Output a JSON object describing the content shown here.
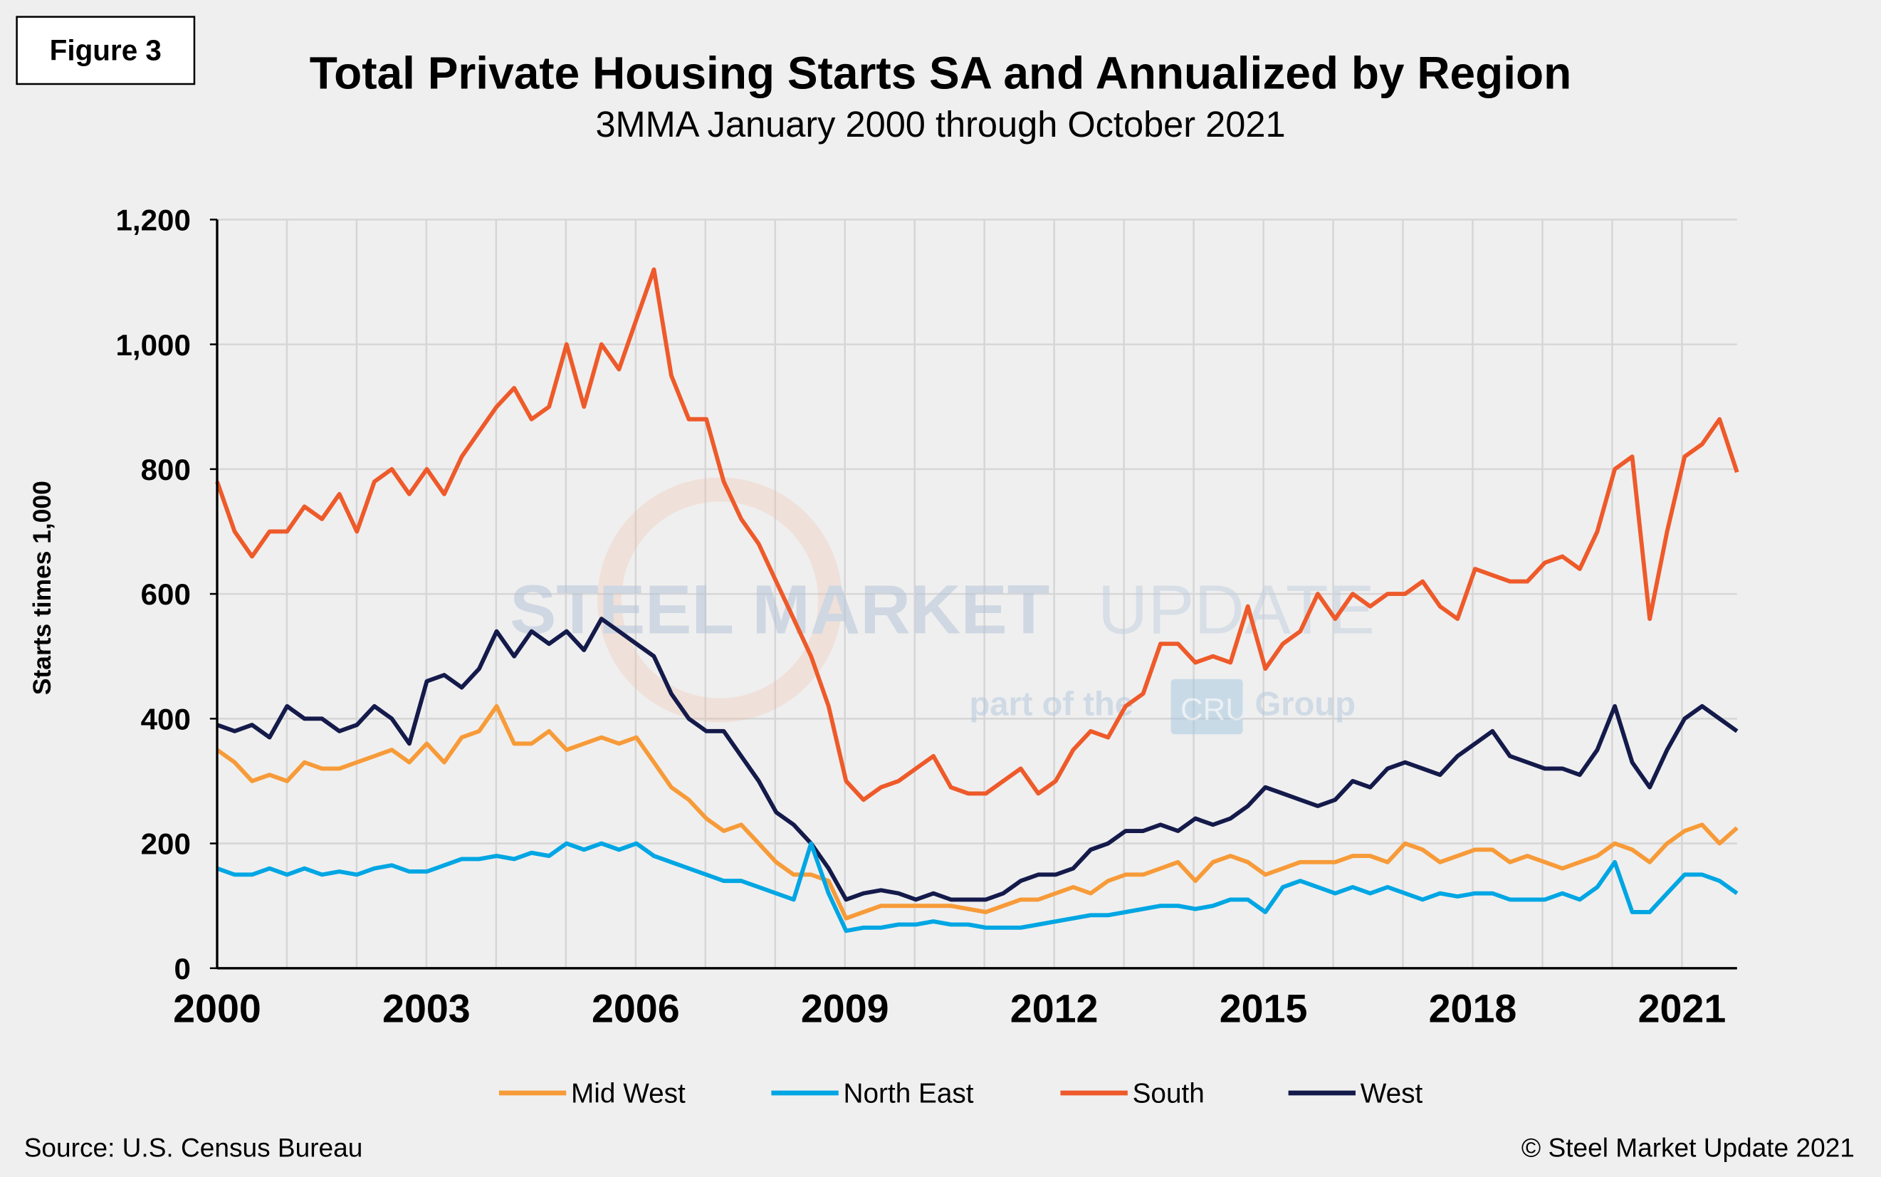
{
  "figure_label": "Figure 3",
  "source": "Source: U.S. Census Bureau",
  "copyright": "© Steel Market Update 2021",
  "watermark": {
    "line1a": "STEEL MARKET",
    "line1b": "UPDATE",
    "line2a": "part of the",
    "line2b": "CRU",
    "line2c": "Group"
  },
  "chart_data": {
    "type": "line",
    "title": "Total Private Housing Starts SA and Annualized by Region",
    "subtitle": "3MMA January 2000 through October 2021",
    "xlabel": "",
    "ylabel": "Starts times 1,000",
    "xlim": [
      2000,
      2021.79
    ],
    "ylim": [
      0,
      1200
    ],
    "grid": true,
    "legend_position": "bottom",
    "x_ticks": [
      "2000",
      "2003",
      "2006",
      "2009",
      "2012",
      "2015",
      "2018",
      "2021"
    ],
    "y_ticks": [
      "0",
      "200",
      "400",
      "600",
      "800",
      "1,000",
      "1,200"
    ],
    "x_frequency": "quarterly (approx.), Jan 2000 – Oct 2021",
    "series": [
      {
        "name": "Mid West",
        "color": "#f79b39",
        "values": [
          350,
          330,
          300,
          310,
          300,
          330,
          320,
          320,
          330,
          340,
          350,
          330,
          360,
          330,
          370,
          380,
          420,
          360,
          360,
          380,
          350,
          360,
          370,
          360,
          370,
          330,
          290,
          270,
          240,
          220,
          230,
          200,
          170,
          150,
          150,
          140,
          80,
          90,
          100,
          100,
          100,
          100,
          100,
          95,
          90,
          100,
          110,
          110,
          120,
          130,
          120,
          140,
          150,
          150,
          160,
          170,
          140,
          170,
          180,
          170,
          150,
          160,
          170,
          170,
          170,
          180,
          180,
          170,
          200,
          190,
          170,
          180,
          190,
          190,
          170,
          180,
          170,
          160,
          170,
          180,
          200,
          190,
          170,
          200,
          220,
          230,
          200,
          225
        ]
      },
      {
        "name": "North East",
        "color": "#00a6e3",
        "values": [
          160,
          150,
          150,
          160,
          150,
          160,
          150,
          155,
          150,
          160,
          165,
          155,
          155,
          165,
          175,
          175,
          180,
          175,
          185,
          180,
          200,
          190,
          200,
          190,
          200,
          180,
          170,
          160,
          150,
          140,
          140,
          130,
          120,
          110,
          200,
          120,
          60,
          65,
          65,
          70,
          70,
          75,
          70,
          70,
          65,
          65,
          65,
          70,
          75,
          80,
          85,
          85,
          90,
          95,
          100,
          100,
          95,
          100,
          110,
          110,
          90,
          130,
          140,
          130,
          120,
          130,
          120,
          130,
          120,
          110,
          120,
          115,
          120,
          120,
          110,
          110,
          110,
          120,
          110,
          130,
          170,
          90,
          90,
          120,
          150,
          150,
          140,
          120
        ]
      },
      {
        "name": "South",
        "color": "#ee5a2a",
        "values": [
          780,
          700,
          660,
          700,
          700,
          740,
          720,
          760,
          700,
          780,
          800,
          760,
          800,
          760,
          820,
          860,
          900,
          930,
          880,
          900,
          1000,
          900,
          1000,
          960,
          1040,
          1120,
          950,
          880,
          880,
          780,
          720,
          680,
          620,
          560,
          500,
          420,
          300,
          270,
          290,
          300,
          320,
          340,
          290,
          280,
          280,
          300,
          320,
          280,
          300,
          350,
          380,
          370,
          420,
          440,
          520,
          520,
          490,
          500,
          490,
          580,
          480,
          520,
          540,
          600,
          560,
          600,
          580,
          600,
          600,
          620,
          580,
          560,
          640,
          630,
          620,
          620,
          650,
          660,
          640,
          700,
          800,
          820,
          560,
          700,
          820,
          840,
          880,
          795
        ]
      },
      {
        "name": "West",
        "color": "#141a4a",
        "values": [
          390,
          380,
          390,
          370,
          420,
          400,
          400,
          380,
          390,
          420,
          400,
          360,
          460,
          470,
          450,
          480,
          540,
          500,
          540,
          520,
          540,
          510,
          560,
          540,
          520,
          500,
          440,
          400,
          380,
          380,
          340,
          300,
          250,
          230,
          200,
          160,
          110,
          120,
          125,
          120,
          110,
          120,
          110,
          110,
          110,
          120,
          140,
          150,
          150,
          160,
          190,
          200,
          220,
          220,
          230,
          220,
          240,
          230,
          240,
          260,
          290,
          280,
          270,
          260,
          270,
          300,
          290,
          320,
          330,
          320,
          310,
          340,
          360,
          380,
          340,
          330,
          320,
          320,
          310,
          350,
          420,
          330,
          290,
          350,
          400,
          420,
          400,
          380
        ]
      }
    ]
  }
}
